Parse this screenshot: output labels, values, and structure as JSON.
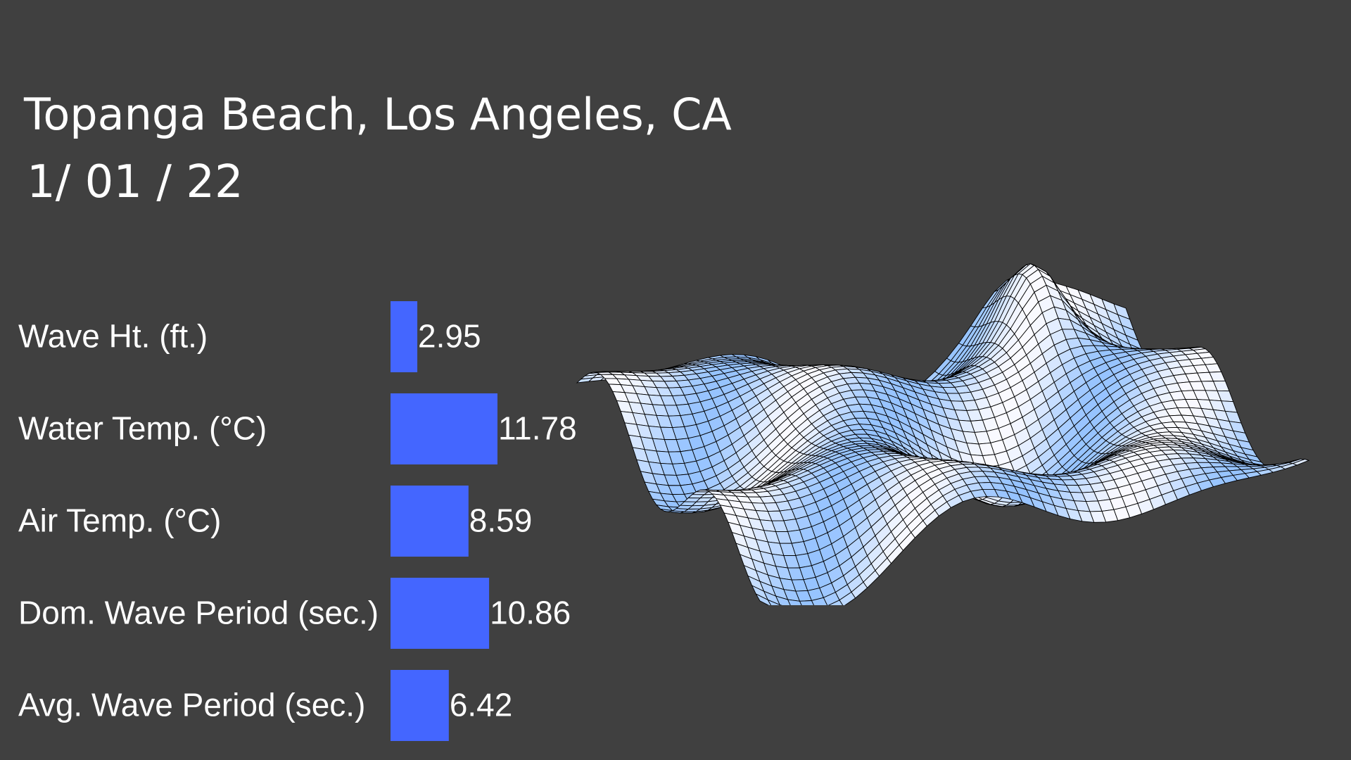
{
  "header": {
    "title": "Topanga Beach, Los Angeles, CA",
    "date": "1/ 01 / 22"
  },
  "colors": {
    "background": "#404040",
    "bar": "#4466ff",
    "text": "#ffffff",
    "surface_light": "#f4f8ff",
    "surface_dark": "#7fb8ea",
    "mesh": "#000000"
  },
  "chart_data": {
    "type": "bar",
    "orientation": "horizontal",
    "categories": [
      "Wave Ht. (ft.)",
      "Water Temp. (°C)",
      "Air Temp. (°C)",
      "Dom. Wave Period (sec.)",
      "Avg. Wave Period (sec.)"
    ],
    "values": [
      2.95,
      11.78,
      8.59,
      10.86,
      6.42
    ],
    "value_labels": [
      "2.95",
      "11.78",
      "8.59",
      "10.86",
      "6.42"
    ],
    "xlim": [
      0,
      12
    ],
    "grid": false,
    "legend": "none"
  },
  "decoration": {
    "icon": "wave-surface-icon"
  }
}
